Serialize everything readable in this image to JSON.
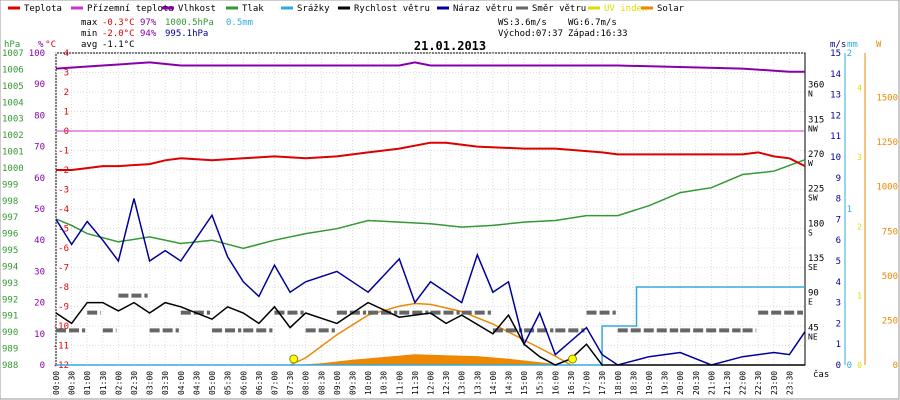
{
  "chart_data": {
    "type": "line",
    "title": "21.01.2013",
    "x_unit_label": "čas",
    "x_ticks": [
      "00:00",
      "00:30",
      "01:00",
      "01:30",
      "02:00",
      "02:30",
      "03:00",
      "03:30",
      "04:00",
      "04:30",
      "05:00",
      "05:30",
      "06:00",
      "06:30",
      "07:00",
      "07:30",
      "08:00",
      "08:30",
      "09:00",
      "09:30",
      "10:00",
      "10:30",
      "11:00",
      "11:30",
      "12:00",
      "12:30",
      "13:00",
      "13:30",
      "14:00",
      "14:30",
      "15:00",
      "15:30",
      "16:00",
      "16:30",
      "17:00",
      "17:30",
      "18:00",
      "18:30",
      "19:00",
      "19:30",
      "20:00",
      "20:30",
      "21:00",
      "21:30",
      "22:00",
      "22:30",
      "23:00",
      "23:30"
    ],
    "legend": [
      {
        "name": "Teplota",
        "color": "#dd0000"
      },
      {
        "name": "Přízemní teplota",
        "color": "#cc33cc"
      },
      {
        "name": "Vlhkost",
        "color": "#8800aa"
      },
      {
        "name": "Tlak",
        "color": "#339933"
      },
      {
        "name": "Srážky",
        "color": "#33aadd"
      },
      {
        "name": "Rychlost větru",
        "color": "#000000"
      },
      {
        "name": "Náraz větru",
        "color": "#000099"
      },
      {
        "name": "Směr větru",
        "color": "#666666"
      },
      {
        "name": "UV index",
        "color": "#dddd00"
      },
      {
        "name": "Solar",
        "color": "#ee8800"
      }
    ],
    "stats": {
      "max": {
        "label": "max",
        "temp": "-0.3°C",
        "hum": "97%",
        "press": "1000.5hPa",
        "rain": "0.5mm"
      },
      "min": {
        "label": "min",
        "temp": "-2.0°C",
        "hum": "94%",
        "press": "995.1hPa"
      },
      "avg": {
        "label": "avg",
        "temp": "-1.1°C"
      }
    },
    "wind_info": {
      "ws": "WS:3.6m/s",
      "wg": "WG:6.7m/s",
      "sunrise": "Východ:07:37",
      "sunset": "Západ:16:33"
    },
    "axes": {
      "hpa": {
        "unit": "hPa",
        "ticks": [
          "1007",
          "1006",
          "1005",
          "1004",
          "1003",
          "1002",
          "1001",
          "1000",
          "999",
          "998",
          "997",
          "996",
          "995",
          "994",
          "993",
          "992",
          "991",
          "990",
          "989",
          "988"
        ]
      },
      "pct": {
        "unit": "%",
        "ticks": [
          "100",
          "90",
          "80",
          "70",
          "60",
          "50",
          "40",
          "30",
          "20",
          "10",
          "0"
        ]
      },
      "degc": {
        "unit": "°C",
        "ticks": [
          "4",
          "3",
          "2",
          "1",
          "0",
          "-1",
          "-2",
          "-3",
          "-4",
          "-5",
          "-6",
          "-7",
          "-8",
          "-9",
          "-10",
          "-11",
          "-12"
        ]
      },
      "dir": {
        "ticks": [
          {
            "v": "360",
            "l": "N"
          },
          {
            "v": "315",
            "l": "NW"
          },
          {
            "v": "270",
            "l": "W"
          },
          {
            "v": "225",
            "l": "SW"
          },
          {
            "v": "180",
            "l": "S"
          },
          {
            "v": "135",
            "l": "SE"
          },
          {
            "v": "90",
            "l": "E"
          },
          {
            "v": "45",
            "l": "NE"
          }
        ]
      },
      "ms": {
        "unit": "m/s",
        "ticks": [
          "15",
          "14",
          "13",
          "12",
          "11",
          "10",
          "9",
          "8",
          "7",
          "6",
          "5",
          "4",
          "3",
          "2",
          "1",
          "0"
        ]
      },
      "mm": {
        "unit": "mm",
        "ticks": [
          "2",
          "1",
          "0"
        ]
      },
      "uv": {
        "ticks": [
          "4",
          "3",
          "2",
          "1",
          "0"
        ]
      },
      "w": {
        "unit": "W",
        "ticks": [
          "1500",
          "1250",
          "1000",
          "750",
          "500",
          "250",
          "0"
        ]
      }
    },
    "ylim": {
      "temp": [
        -12,
        4
      ],
      "humidity": [
        0,
        100
      ],
      "pressure": [
        988,
        1007
      ],
      "wind_ms": [
        0,
        15
      ],
      "rain_mm": [
        0,
        2
      ],
      "solar_w": [
        0,
        1750
      ],
      "dir_deg": [
        0,
        405
      ]
    },
    "series": {
      "temperature": [
        [
          0,
          -2.0
        ],
        [
          0.5,
          -2.0
        ],
        [
          1.0,
          -1.9
        ],
        [
          1.5,
          -1.8
        ],
        [
          2.0,
          -1.8
        ],
        [
          3.0,
          -1.7
        ],
        [
          3.5,
          -1.5
        ],
        [
          4.0,
          -1.4
        ],
        [
          5.0,
          -1.5
        ],
        [
          6.0,
          -1.4
        ],
        [
          7.0,
          -1.3
        ],
        [
          8.0,
          -1.4
        ],
        [
          9.0,
          -1.3
        ],
        [
          10.0,
          -1.1
        ],
        [
          11.0,
          -0.9
        ],
        [
          12.0,
          -0.6
        ],
        [
          12.5,
          -0.6
        ],
        [
          13.5,
          -0.8
        ],
        [
          15.0,
          -0.9
        ],
        [
          16.0,
          -0.9
        ],
        [
          17.5,
          -1.1
        ],
        [
          18.0,
          -1.2
        ],
        [
          19.0,
          -1.2
        ],
        [
          20.0,
          -1.2
        ],
        [
          21.0,
          -1.2
        ],
        [
          22.0,
          -1.2
        ],
        [
          22.5,
          -1.1
        ],
        [
          23.0,
          -1.3
        ],
        [
          23.5,
          -1.4
        ],
        [
          24.0,
          -1.8
        ]
      ],
      "ground_temperature": [
        [
          0,
          0.0
        ],
        [
          24.0,
          0.0
        ]
      ],
      "humidity": [
        [
          0,
          95
        ],
        [
          1.5,
          96
        ],
        [
          3.0,
          97
        ],
        [
          4.0,
          96
        ],
        [
          8.0,
          96
        ],
        [
          11.0,
          96
        ],
        [
          11.5,
          97
        ],
        [
          12.0,
          96
        ],
        [
          16.0,
          96
        ],
        [
          17.0,
          96
        ],
        [
          18.0,
          96
        ],
        [
          22.0,
          95
        ],
        [
          23.5,
          94
        ],
        [
          24.0,
          94
        ]
      ],
      "pressure": [
        [
          0,
          996.9
        ],
        [
          0.5,
          996.5
        ],
        [
          1.0,
          996.0
        ],
        [
          2.0,
          995.5
        ],
        [
          3.0,
          995.8
        ],
        [
          4.0,
          995.4
        ],
        [
          5.0,
          995.6
        ],
        [
          6.0,
          995.1
        ],
        [
          7.0,
          995.6
        ],
        [
          8.0,
          996.0
        ],
        [
          9.0,
          996.3
        ],
        [
          10.0,
          996.8
        ],
        [
          11.0,
          996.7
        ],
        [
          12.0,
          996.6
        ],
        [
          13.0,
          996.4
        ],
        [
          14.0,
          996.5
        ],
        [
          15.0,
          996.7
        ],
        [
          16.0,
          996.8
        ],
        [
          17.0,
          997.1
        ],
        [
          18.0,
          997.1
        ],
        [
          19.0,
          997.7
        ],
        [
          20.0,
          998.5
        ],
        [
          21.0,
          998.8
        ],
        [
          22.0,
          999.6
        ],
        [
          23.0,
          999.8
        ],
        [
          24.0,
          1000.5
        ]
      ],
      "rain_mm": [
        [
          0,
          0
        ],
        [
          17.5,
          0
        ],
        [
          17.5,
          0.25
        ],
        [
          18.6,
          0.25
        ],
        [
          18.6,
          0.5
        ],
        [
          24.0,
          0.5
        ]
      ],
      "wind_speed": [
        [
          0,
          2.5
        ],
        [
          0.5,
          2.0
        ],
        [
          1.0,
          3.0
        ],
        [
          1.5,
          3.0
        ],
        [
          2.0,
          2.6
        ],
        [
          2.5,
          3.0
        ],
        [
          3.0,
          2.5
        ],
        [
          3.5,
          3.0
        ],
        [
          4.0,
          2.8
        ],
        [
          5.0,
          2.2
        ],
        [
          5.5,
          2.8
        ],
        [
          6.0,
          2.5
        ],
        [
          6.5,
          2.0
        ],
        [
          7.0,
          2.8
        ],
        [
          7.5,
          1.8
        ],
        [
          8.0,
          2.5
        ],
        [
          9.0,
          2.0
        ],
        [
          10.0,
          3.0
        ],
        [
          11.0,
          2.3
        ],
        [
          12.0,
          2.5
        ],
        [
          12.5,
          2.0
        ],
        [
          13.0,
          2.4
        ],
        [
          14.0,
          1.5
        ],
        [
          14.5,
          2.4
        ],
        [
          15.0,
          1.0
        ],
        [
          15.5,
          0.4
        ],
        [
          16.0,
          0.0
        ],
        [
          16.5,
          0.3
        ],
        [
          17.0,
          1.0
        ],
        [
          17.5,
          0.0
        ],
        [
          18.0,
          0.0
        ],
        [
          24.0,
          0.0
        ]
      ],
      "wind_gust": [
        [
          0,
          7.0
        ],
        [
          0.5,
          5.8
        ],
        [
          1.0,
          6.9
        ],
        [
          1.5,
          6.0
        ],
        [
          2.0,
          5.0
        ],
        [
          2.5,
          8.0
        ],
        [
          3.0,
          5.0
        ],
        [
          3.5,
          5.5
        ],
        [
          4.0,
          5.0
        ],
        [
          5.0,
          7.2
        ],
        [
          5.5,
          5.2
        ],
        [
          6.0,
          4.0
        ],
        [
          6.5,
          3.3
        ],
        [
          7.0,
          4.8
        ],
        [
          7.5,
          3.5
        ],
        [
          8.0,
          4.0
        ],
        [
          9.0,
          4.5
        ],
        [
          10.0,
          3.5
        ],
        [
          11.0,
          5.1
        ],
        [
          11.5,
          3.0
        ],
        [
          12.0,
          4.0
        ],
        [
          13.0,
          3.0
        ],
        [
          13.5,
          5.3
        ],
        [
          14.0,
          3.5
        ],
        [
          14.5,
          4.0
        ],
        [
          15.0,
          1.0
        ],
        [
          15.5,
          2.5
        ],
        [
          16.0,
          0.5
        ],
        [
          17.0,
          1.8
        ],
        [
          17.5,
          0.5
        ],
        [
          18.0,
          0.0
        ],
        [
          19.0,
          0.4
        ],
        [
          20.0,
          0.6
        ],
        [
          21.0,
          0.0
        ],
        [
          22.0,
          0.4
        ],
        [
          23.0,
          0.6
        ],
        [
          23.5,
          0.5
        ],
        [
          24.0,
          1.6
        ]
      ],
      "wind_dir_deg": [
        [
          0,
          45
        ],
        [
          1.0,
          68
        ],
        [
          1.5,
          45
        ],
        [
          2.0,
          90
        ],
        [
          3.0,
          45
        ],
        [
          4.0,
          68
        ],
        [
          5.0,
          45
        ],
        [
          6.0,
          45
        ],
        [
          7.0,
          68
        ],
        [
          8.0,
          45
        ],
        [
          9.0,
          68
        ],
        [
          10.0,
          68
        ],
        [
          11.0,
          68
        ],
        [
          12.0,
          68
        ],
        [
          13.0,
          68
        ],
        [
          14.0,
          45
        ],
        [
          15.0,
          45
        ],
        [
          16.0,
          45
        ],
        [
          17.0,
          68
        ],
        [
          18.0,
          45
        ],
        [
          20.0,
          45
        ],
        [
          22.0,
          45
        ],
        [
          22.5,
          68
        ],
        [
          24.0,
          68
        ]
      ],
      "solar_w": [
        [
          7.5,
          0
        ],
        [
          8.0,
          40
        ],
        [
          9.0,
          170
        ],
        [
          10.0,
          280
        ],
        [
          11.0,
          330
        ],
        [
          11.5,
          345
        ],
        [
          12.0,
          340
        ],
        [
          13.0,
          300
        ],
        [
          14.0,
          230
        ],
        [
          15.0,
          140
        ],
        [
          16.0,
          50
        ],
        [
          16.5,
          0
        ]
      ],
      "solar_measured_w": [
        [
          7.6,
          0
        ],
        [
          8.5,
          10
        ],
        [
          9.5,
          30
        ],
        [
          10.5,
          45
        ],
        [
          11.5,
          60
        ],
        [
          12.5,
          55
        ],
        [
          13.5,
          50
        ],
        [
          14.5,
          35
        ],
        [
          15.5,
          15
        ],
        [
          16.3,
          0
        ]
      ]
    },
    "markers": {
      "sunrise_h": 7.617,
      "sunset_h": 16.55
    }
  }
}
